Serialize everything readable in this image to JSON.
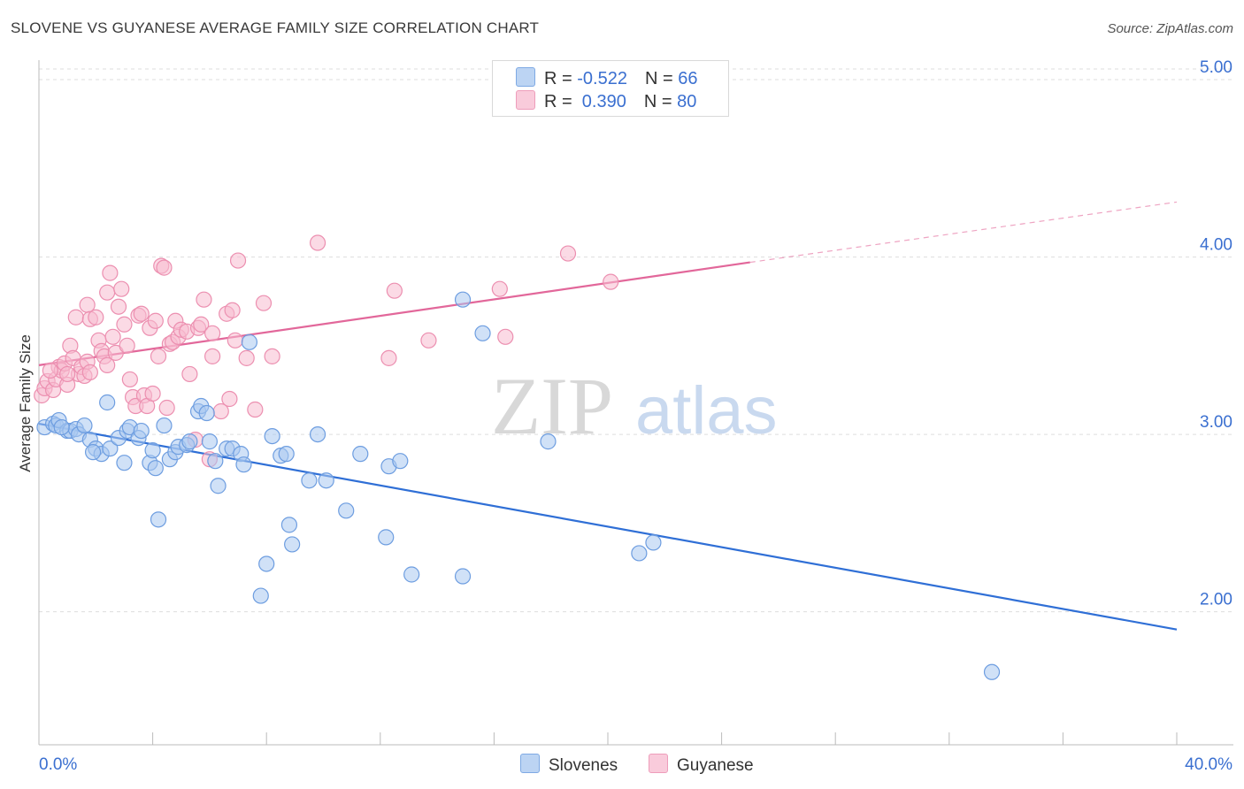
{
  "header": {
    "title": "SLOVENE VS GUYANESE AVERAGE FAMILY SIZE CORRELATION CHART",
    "source": "Source: ZipAtlas.com"
  },
  "legend": {
    "rows": [
      {
        "r_label": "R = ",
        "r_value": "-0.522",
        "n_label": "N = ",
        "n_value": "66"
      },
      {
        "r_label": "R = ",
        "r_value": " 0.390",
        "n_label": "N = ",
        "n_value": "80"
      }
    ],
    "series": [
      "Slovenes",
      "Guyanese"
    ]
  },
  "watermark": {
    "part1": "ZIP",
    "part2": "atlas"
  },
  "colors": {
    "blue_fill": "#a9c8f0",
    "blue_stroke": "#6d9de0",
    "blue_line": "#2f6fd6",
    "pink_fill": "#f7bcd0",
    "pink_stroke": "#ec8fb0",
    "pink_line": "#e2679a",
    "axis_label": "#3a6fd0",
    "grid": "#dddddd"
  },
  "chart_data": {
    "type": "scatter",
    "title": "SLOVENE VS GUYANESE AVERAGE FAMILY SIZE CORRELATION CHART",
    "xlabel": "",
    "ylabel": "Average Family Size",
    "x_tick_labels": [
      "0.0%",
      "40.0%"
    ],
    "y_tick_labels": [
      "2.00",
      "3.00",
      "4.00",
      "5.00"
    ],
    "xlim": [
      0,
      40
    ],
    "ylim": [
      1.25,
      5.1
    ],
    "grid": true,
    "legend_position": "top-center",
    "series": [
      {
        "name": "Slovenes",
        "color": "#a9c8f0",
        "r": -0.522,
        "n": 66,
        "trend": {
          "x": [
            0,
            40
          ],
          "y": [
            3.06,
            1.9
          ]
        },
        "points": [
          [
            0.2,
            3.04
          ],
          [
            0.5,
            3.06
          ],
          [
            0.6,
            3.05
          ],
          [
            0.7,
            3.08
          ],
          [
            1.0,
            3.02
          ],
          [
            1.1,
            3.02
          ],
          [
            1.3,
            3.03
          ],
          [
            1.4,
            3.0
          ],
          [
            1.6,
            3.05
          ],
          [
            1.8,
            2.97
          ],
          [
            2.0,
            2.92
          ],
          [
            2.2,
            2.89
          ],
          [
            2.5,
            2.92
          ],
          [
            2.4,
            3.18
          ],
          [
            2.8,
            2.98
          ],
          [
            3.0,
            2.84
          ],
          [
            3.1,
            3.02
          ],
          [
            3.2,
            3.04
          ],
          [
            3.5,
            2.98
          ],
          [
            3.6,
            3.02
          ],
          [
            3.9,
            2.84
          ],
          [
            4.0,
            2.91
          ],
          [
            4.1,
            2.81
          ],
          [
            4.2,
            2.52
          ],
          [
            4.4,
            3.05
          ],
          [
            4.6,
            2.86
          ],
          [
            4.8,
            2.9
          ],
          [
            4.9,
            2.93
          ],
          [
            5.2,
            2.94
          ],
          [
            5.3,
            2.96
          ],
          [
            5.6,
            3.13
          ],
          [
            5.7,
            3.16
          ],
          [
            5.9,
            3.12
          ],
          [
            6.0,
            2.96
          ],
          [
            6.2,
            2.85
          ],
          [
            6.3,
            2.71
          ],
          [
            6.6,
            2.92
          ],
          [
            6.8,
            2.92
          ],
          [
            7.1,
            2.89
          ],
          [
            7.2,
            2.83
          ],
          [
            7.4,
            3.52
          ],
          [
            7.8,
            2.09
          ],
          [
            8.0,
            2.27
          ],
          [
            8.2,
            2.99
          ],
          [
            8.5,
            2.88
          ],
          [
            8.7,
            2.89
          ],
          [
            8.8,
            2.49
          ],
          [
            8.9,
            2.38
          ],
          [
            9.5,
            2.74
          ],
          [
            9.8,
            3.0
          ],
          [
            10.1,
            2.74
          ],
          [
            10.8,
            2.57
          ],
          [
            11.3,
            2.89
          ],
          [
            12.2,
            2.42
          ],
          [
            12.3,
            2.82
          ],
          [
            12.7,
            2.85
          ],
          [
            13.1,
            2.21
          ],
          [
            14.9,
            3.76
          ],
          [
            14.9,
            2.2
          ],
          [
            15.6,
            3.57
          ],
          [
            17.9,
            2.96
          ],
          [
            21.1,
            2.33
          ],
          [
            21.6,
            2.39
          ],
          [
            33.5,
            1.66
          ],
          [
            0.8,
            3.04
          ],
          [
            1.9,
            2.9
          ]
        ]
      },
      {
        "name": "Guyanese",
        "color": "#f7bcd0",
        "r": 0.39,
        "n": 80,
        "trend": {
          "x": [
            0,
            25
          ],
          "y": [
            3.39,
            3.97
          ]
        },
        "trend_dashed": {
          "x": [
            25,
            40
          ],
          "y": [
            3.97,
            4.31
          ]
        },
        "points": [
          [
            0.1,
            3.22
          ],
          [
            0.2,
            3.26
          ],
          [
            0.3,
            3.3
          ],
          [
            0.5,
            3.25
          ],
          [
            0.6,
            3.31
          ],
          [
            0.7,
            3.38
          ],
          [
            0.8,
            3.36
          ],
          [
            0.9,
            3.4
          ],
          [
            1.0,
            3.28
          ],
          [
            1.1,
            3.5
          ],
          [
            1.2,
            3.43
          ],
          [
            1.3,
            3.66
          ],
          [
            1.4,
            3.34
          ],
          [
            1.5,
            3.38
          ],
          [
            1.6,
            3.33
          ],
          [
            1.7,
            3.41
          ],
          [
            1.8,
            3.35
          ],
          [
            1.7,
            3.73
          ],
          [
            1.8,
            3.65
          ],
          [
            2.0,
            3.66
          ],
          [
            2.1,
            3.53
          ],
          [
            2.2,
            3.47
          ],
          [
            2.3,
            3.44
          ],
          [
            2.4,
            3.8
          ],
          [
            2.5,
            3.91
          ],
          [
            2.6,
            3.55
          ],
          [
            2.7,
            3.46
          ],
          [
            2.8,
            3.72
          ],
          [
            2.9,
            3.82
          ],
          [
            3.0,
            3.62
          ],
          [
            3.1,
            3.5
          ],
          [
            3.2,
            3.31
          ],
          [
            3.3,
            3.21
          ],
          [
            3.4,
            3.16
          ],
          [
            3.5,
            3.67
          ],
          [
            3.6,
            3.68
          ],
          [
            3.7,
            3.22
          ],
          [
            3.8,
            3.16
          ],
          [
            3.9,
            3.6
          ],
          [
            4.0,
            3.23
          ],
          [
            4.1,
            3.64
          ],
          [
            4.2,
            3.44
          ],
          [
            4.3,
            3.95
          ],
          [
            4.4,
            3.94
          ],
          [
            4.5,
            3.15
          ],
          [
            4.6,
            3.51
          ],
          [
            4.7,
            3.52
          ],
          [
            4.8,
            3.64
          ],
          [
            4.9,
            3.55
          ],
          [
            5.0,
            3.59
          ],
          [
            5.2,
            3.58
          ],
          [
            5.3,
            3.34
          ],
          [
            5.5,
            2.97
          ],
          [
            5.6,
            3.6
          ],
          [
            5.7,
            3.62
          ],
          [
            5.8,
            3.76
          ],
          [
            6.0,
            2.86
          ],
          [
            6.1,
            3.57
          ],
          [
            6.1,
            3.44
          ],
          [
            6.4,
            3.13
          ],
          [
            6.6,
            3.68
          ],
          [
            6.7,
            3.2
          ],
          [
            6.8,
            3.7
          ],
          [
            6.9,
            3.53
          ],
          [
            7.0,
            3.98
          ],
          [
            7.3,
            3.43
          ],
          [
            7.6,
            3.14
          ],
          [
            7.9,
            3.74
          ],
          [
            8.2,
            3.44
          ],
          [
            9.8,
            4.08
          ],
          [
            12.3,
            3.43
          ],
          [
            12.5,
            3.81
          ],
          [
            13.7,
            3.53
          ],
          [
            16.2,
            3.82
          ],
          [
            16.4,
            3.55
          ],
          [
            18.6,
            4.02
          ],
          [
            20.1,
            3.86
          ],
          [
            0.4,
            3.36
          ],
          [
            1.0,
            3.34
          ],
          [
            2.4,
            3.39
          ]
        ]
      }
    ]
  }
}
